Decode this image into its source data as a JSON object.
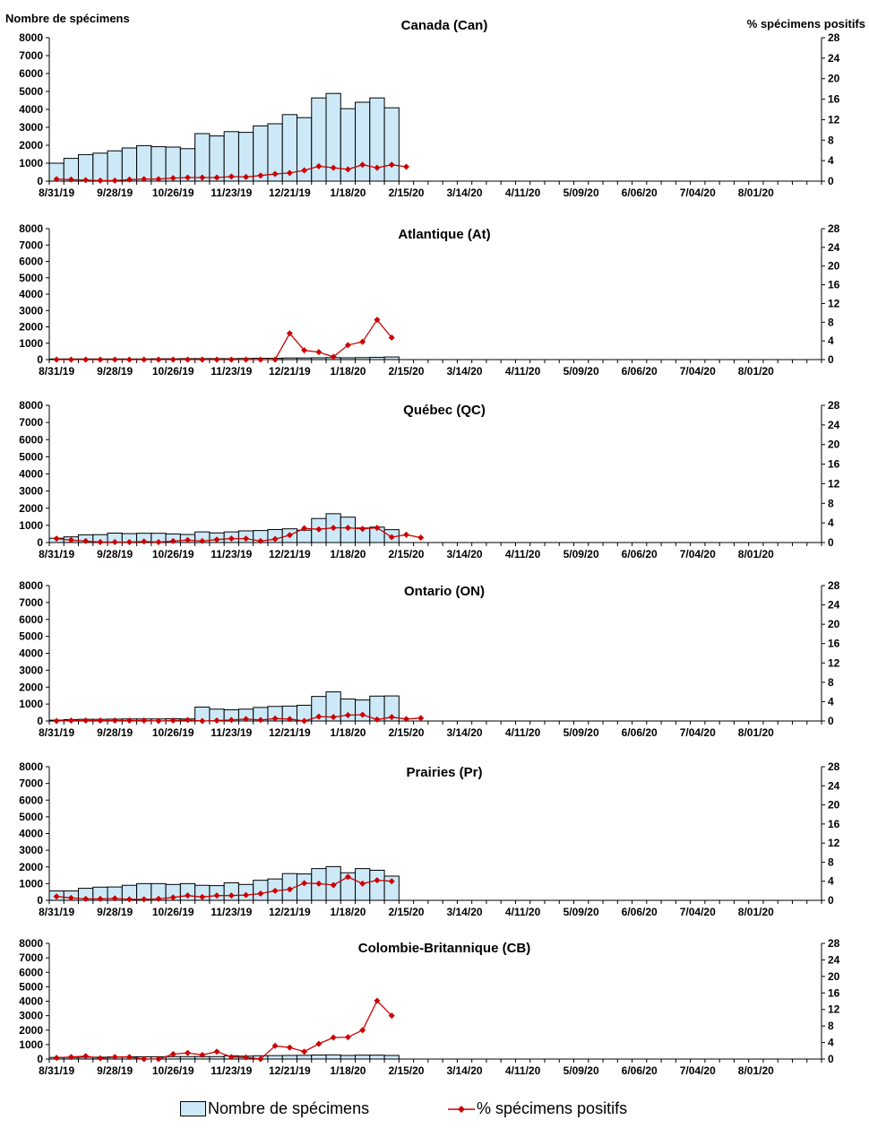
{
  "y_left_label": "Nombre de spécimens",
  "y_right_label": "% spécimens positifs",
  "legend": {
    "bars": "Nombre de spécimens",
    "line": "% spécimens positifs"
  },
  "colors": {
    "bar_fill": "#cde9f8",
    "bar_stroke": "#000000",
    "line": "#cc0000",
    "marker": "#cc0000"
  },
  "chart_data": [
    {
      "type": "bar+line",
      "title": "Canada (Can)",
      "x_tick_labels": [
        "8/31/19",
        "9/28/19",
        "10/26/19",
        "11/23/19",
        "12/21/19",
        "1/18/20",
        "2/15/20",
        "3/14/20",
        "4/11/20",
        "5/09/20",
        "6/06/20",
        "7/04/20",
        "8/01/20"
      ],
      "ylim_left": [
        0,
        8000
      ],
      "yticks_left": [
        0,
        1000,
        2000,
        3000,
        4000,
        5000,
        6000,
        7000,
        8000
      ],
      "ylim_right": [
        0,
        28
      ],
      "yticks_right": [
        0,
        4,
        8,
        12,
        16,
        20,
        24,
        28
      ],
      "n_weeks": 53,
      "series": [
        {
          "name": "Nombre de spécimens",
          "axis": "left",
          "values": [
            1000,
            1270,
            1480,
            1560,
            1690,
            1850,
            1980,
            1920,
            1900,
            1810,
            2650,
            2520,
            2760,
            2720,
            3080,
            3200,
            3710,
            3540,
            4640,
            4890,
            4040,
            4400,
            4640,
            4090
          ]
        },
        {
          "name": "% spécimens positifs",
          "axis": "right",
          "values": [
            0.4,
            0.3,
            0.2,
            0.1,
            0.1,
            0.3,
            0.4,
            0.4,
            0.6,
            0.7,
            0.7,
            0.7,
            0.9,
            0.8,
            1.1,
            1.4,
            1.6,
            2.1,
            2.9,
            2.6,
            2.3,
            3.2,
            2.6,
            3.2,
            2.8
          ]
        }
      ]
    },
    {
      "type": "bar+line",
      "title": "Atlantique (At)",
      "x_tick_labels": [
        "8/31/19",
        "9/28/19",
        "10/26/19",
        "11/23/19",
        "12/21/19",
        "1/18/20",
        "2/15/20",
        "3/14/20",
        "4/11/20",
        "5/09/20",
        "6/06/20",
        "7/04/20",
        "8/01/20"
      ],
      "ylim_left": [
        0,
        8000
      ],
      "yticks_left": [
        0,
        1000,
        2000,
        3000,
        4000,
        5000,
        6000,
        7000,
        8000
      ],
      "ylim_right": [
        0,
        28
      ],
      "yticks_right": [
        0,
        4,
        8,
        12,
        16,
        20,
        24,
        28
      ],
      "n_weeks": 53,
      "series": [
        {
          "name": "Nombre de spécimens",
          "axis": "left",
          "values": [
            40,
            40,
            40,
            40,
            40,
            40,
            40,
            50,
            50,
            60,
            60,
            60,
            60,
            70,
            80,
            80,
            100,
            100,
            110,
            120,
            110,
            120,
            140,
            160
          ]
        },
        {
          "name": "% spécimens positifs",
          "axis": "right",
          "values": [
            0,
            0,
            0,
            0,
            0,
            0,
            0,
            0,
            0,
            0,
            0,
            0,
            0,
            0,
            0,
            0,
            5.6,
            2.0,
            1.6,
            0.6,
            3.1,
            3.8,
            8.5,
            4.7
          ]
        }
      ]
    },
    {
      "type": "bar+line",
      "title": "Québec (QC)",
      "x_tick_labels": [
        "8/31/19",
        "9/28/19",
        "10/26/19",
        "11/23/19",
        "12/21/19",
        "1/18/20",
        "2/15/20",
        "3/14/20",
        "4/11/20",
        "5/09/20",
        "6/06/20",
        "7/04/20",
        "8/01/20"
      ],
      "ylim_left": [
        0,
        8000
      ],
      "yticks_left": [
        0,
        1000,
        2000,
        3000,
        4000,
        5000,
        6000,
        7000,
        8000
      ],
      "ylim_right": [
        0,
        28
      ],
      "yticks_right": [
        0,
        4,
        8,
        12,
        16,
        20,
        24,
        28
      ],
      "n_weeks": 53,
      "series": [
        {
          "name": "Nombre de spécimens",
          "axis": "left",
          "values": [
            250,
            330,
            450,
            460,
            550,
            520,
            540,
            540,
            500,
            470,
            620,
            560,
            620,
            680,
            700,
            760,
            800,
            720,
            1400,
            1680,
            1480,
            850,
            900,
            750
          ]
        },
        {
          "name": "% spécimens positifs",
          "axis": "right",
          "values": [
            0.8,
            0.5,
            0.3,
            0.1,
            0.1,
            0.1,
            0.2,
            0.1,
            0.3,
            0.5,
            0.3,
            0.6,
            0.8,
            0.8,
            0.3,
            0.7,
            1.5,
            2.9,
            2.7,
            3.0,
            3.0,
            2.8,
            3.0,
            1.1,
            1.6,
            1.0
          ]
        }
      ]
    },
    {
      "type": "bar+line",
      "title": "Ontario (ON)",
      "x_tick_labels": [
        "8/31/19",
        "9/28/19",
        "10/26/19",
        "11/23/19",
        "12/21/19",
        "1/18/20",
        "2/15/20",
        "3/14/20",
        "4/11/20",
        "5/09/20",
        "6/06/20",
        "7/04/20",
        "8/01/20"
      ],
      "ylim_left": [
        0,
        8000
      ],
      "yticks_left": [
        0,
        1000,
        2000,
        3000,
        4000,
        5000,
        6000,
        7000,
        8000
      ],
      "ylim_right": [
        0,
        28
      ],
      "yticks_right": [
        0,
        4,
        8,
        12,
        16,
        20,
        24,
        28
      ],
      "n_weeks": 53,
      "series": [
        {
          "name": "Nombre de spécimens",
          "axis": "left",
          "values": [
            50,
            80,
            100,
            100,
            110,
            120,
            120,
            120,
            130,
            120,
            820,
            700,
            660,
            700,
            800,
            860,
            880,
            930,
            1450,
            1720,
            1300,
            1240,
            1470,
            1480
          ]
        },
        {
          "name": "% spécimens positifs",
          "axis": "right",
          "values": [
            0,
            0.1,
            0.1,
            0.1,
            0.1,
            0.1,
            0.1,
            0,
            0.1,
            0.2,
            0,
            0.1,
            0.2,
            0.4,
            0.2,
            0.5,
            0.4,
            0,
            0.9,
            0.8,
            1.2,
            1.3,
            0.3,
            0.8,
            0.4,
            0.6
          ]
        }
      ]
    },
    {
      "type": "bar+line",
      "title": "Prairies (Pr)",
      "x_tick_labels": [
        "8/31/19",
        "9/28/19",
        "10/26/19",
        "11/23/19",
        "12/21/19",
        "1/18/20",
        "2/15/20",
        "3/14/20",
        "4/11/20",
        "5/09/20",
        "6/06/20",
        "7/04/20",
        "8/01/20"
      ],
      "ylim_left": [
        0,
        8000
      ],
      "yticks_left": [
        0,
        1000,
        2000,
        3000,
        4000,
        5000,
        6000,
        7000,
        8000
      ],
      "ylim_right": [
        0,
        28
      ],
      "yticks_right": [
        0,
        4,
        8,
        12,
        16,
        20,
        24,
        28
      ],
      "n_weeks": 53,
      "series": [
        {
          "name": "Nombre de spécimens",
          "axis": "left",
          "values": [
            560,
            560,
            720,
            790,
            800,
            900,
            1000,
            1000,
            950,
            1000,
            900,
            880,
            1050,
            950,
            1200,
            1280,
            1600,
            1580,
            1900,
            2020,
            1650,
            1900,
            1800,
            1450
          ]
        },
        {
          "name": "% spécimens positifs",
          "axis": "right",
          "values": [
            0.8,
            0.5,
            0.3,
            0.3,
            0.4,
            0.2,
            0.2,
            0.3,
            0.6,
            1.0,
            0.7,
            1.0,
            1.0,
            1.1,
            1.4,
            2.0,
            2.3,
            3.6,
            3.5,
            3.2,
            4.9,
            3.5,
            4.2,
            4.0
          ]
        }
      ]
    },
    {
      "type": "bar+line",
      "title": "Colombie-Britannique (CB)",
      "x_tick_labels": [
        "8/31/19",
        "9/28/19",
        "10/26/19",
        "11/23/19",
        "12/21/19",
        "1/18/20",
        "2/15/20",
        "3/14/20",
        "4/11/20",
        "5/09/20",
        "6/06/20",
        "7/04/20",
        "8/01/20"
      ],
      "ylim_left": [
        0,
        8000
      ],
      "yticks_left": [
        0,
        1000,
        2000,
        3000,
        4000,
        5000,
        6000,
        7000,
        8000
      ],
      "ylim_right": [
        0,
        28
      ],
      "yticks_right": [
        0,
        4,
        8,
        12,
        16,
        20,
        24,
        28
      ],
      "n_weeks": 53,
      "series": [
        {
          "name": "Nombre de spécimens",
          "axis": "left",
          "values": [
            110,
            110,
            130,
            130,
            150,
            160,
            160,
            160,
            170,
            170,
            170,
            170,
            220,
            200,
            230,
            240,
            250,
            260,
            280,
            290,
            250,
            270,
            270,
            250
          ]
        },
        {
          "name": "% spécimens positifs",
          "axis": "right",
          "values": [
            0.3,
            0.5,
            0.7,
            0.2,
            0.5,
            0.5,
            0,
            0,
            1.2,
            1.5,
            1.0,
            1.8,
            0.5,
            0.4,
            0,
            3.2,
            2.8,
            1.8,
            3.7,
            5.2,
            5.3,
            7.0,
            14.1,
            10.5
          ]
        }
      ]
    }
  ]
}
